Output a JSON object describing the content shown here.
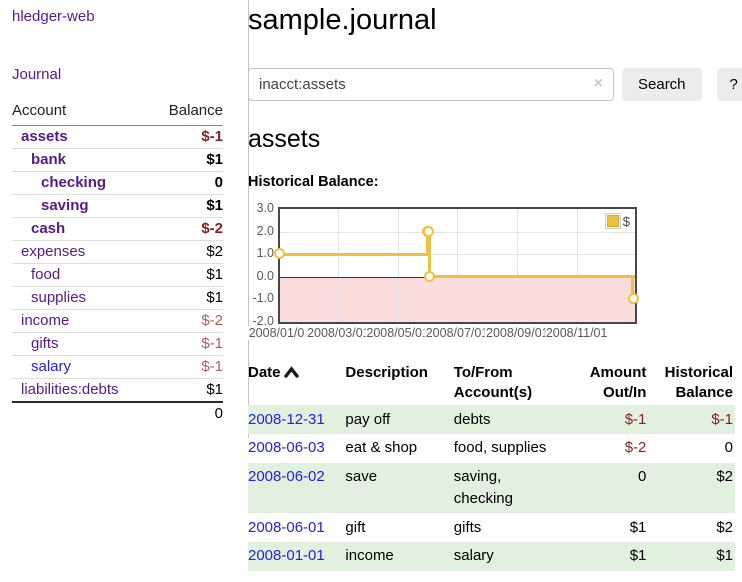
{
  "colors": {
    "accent_series_yellow": "#edc240",
    "link_purple": "#551a8b",
    "link_blue": "#2222dd",
    "negative_strong": "#8b1c1c",
    "negative_soft": "#aa5f5f",
    "row_stripe_green": "#e2f0df",
    "chart_negative_fill": "#fbdcdc",
    "chart_zero_line": "#a00000"
  },
  "sidebar": {
    "brand": "hledger-web",
    "journal_link": "Journal",
    "table": {
      "col_account": "Account",
      "col_balance": "Balance",
      "rows": [
        {
          "account": "assets",
          "balance": "$-1"
        },
        {
          "account": "bank",
          "balance": "$1"
        },
        {
          "account": "checking",
          "balance": "0"
        },
        {
          "account": "saving",
          "balance": "$1"
        },
        {
          "account": "cash",
          "balance": "$-2"
        },
        {
          "account": "expenses",
          "balance": "$2"
        },
        {
          "account": "food",
          "balance": "$1"
        },
        {
          "account": "supplies",
          "balance": "$1"
        },
        {
          "account": "income",
          "balance": "$-2"
        },
        {
          "account": "gifts",
          "balance": "$-1"
        },
        {
          "account": "salary",
          "balance": "$-1"
        },
        {
          "account": "liabilities:debts",
          "balance": "$1"
        }
      ],
      "total": "0"
    }
  },
  "main": {
    "title": "sample.journal",
    "search": {
      "value": "inacct:assets",
      "clear_icon": "×",
      "search_button": "Search",
      "help_button": "?"
    },
    "account_heading": "assets",
    "chart_title": "Historical Balance:"
  },
  "chart_data": {
    "type": "line",
    "step": true,
    "title": "Historical Balance",
    "series": [
      {
        "name": "$",
        "color": "#edc240",
        "points": [
          {
            "x": "2008-01-01",
            "y": 1
          },
          {
            "x": "2008-06-01",
            "y": 2
          },
          {
            "x": "2008-06-02",
            "y": 2
          },
          {
            "x": "2008-06-03",
            "y": 0
          },
          {
            "x": "2008-12-31",
            "y": -1
          }
        ]
      }
    ],
    "ylim": [
      -2,
      3
    ],
    "yticks": [
      "3.0",
      "2.0",
      "1.0",
      "0.0",
      "-1.0",
      "-2.0"
    ],
    "xticks": [
      "2008/01/01",
      "2008/03/01",
      "2008/05/01",
      "2008/07/01",
      "2008/09/01",
      "2008/11/01"
    ],
    "legend": {
      "position": "top-right",
      "label": "$"
    },
    "negative_region_shaded": true,
    "grid": true
  },
  "register": {
    "headers": {
      "date": "Date",
      "description": "Description",
      "accounts": "To/From Account(s)",
      "amount": "Amount Out/In",
      "balance": "Historical Balance"
    },
    "rows": [
      {
        "date": "2008-12-31",
        "description": "pay off",
        "accounts": "debts",
        "amount": "$-1",
        "balance": "$-1"
      },
      {
        "date": "2008-06-03",
        "description": "eat & shop",
        "accounts": "food, supplies",
        "amount": "$-2",
        "balance": "0"
      },
      {
        "date": "2008-06-02",
        "description": "save",
        "accounts": "saving, checking",
        "amount": "0",
        "balance": "$2"
      },
      {
        "date": "2008-06-01",
        "description": "gift",
        "accounts": "gifts",
        "amount": "$1",
        "balance": "$2"
      },
      {
        "date": "2008-01-01",
        "description": "income",
        "accounts": "salary",
        "amount": "$1",
        "balance": "$1"
      }
    ]
  }
}
